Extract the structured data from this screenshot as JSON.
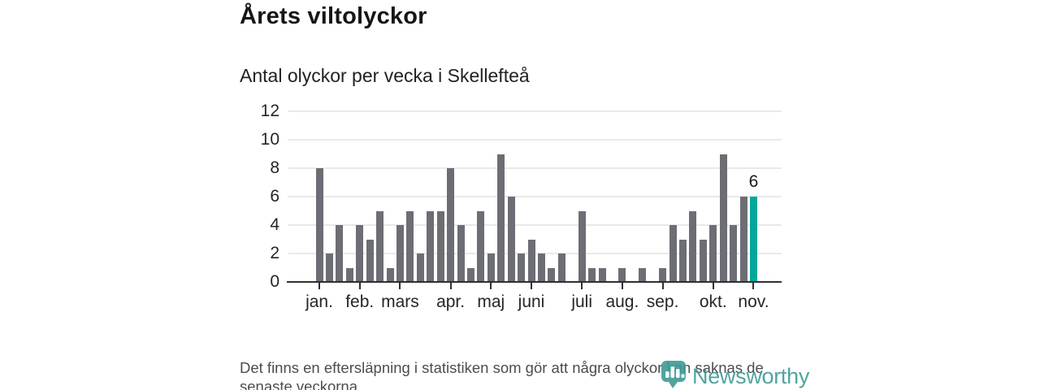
{
  "header": {
    "title": "Årets viltolyckor",
    "subtitle": "Antal olyckor per vecka i Skellefteå"
  },
  "chart_data": {
    "type": "bar",
    "title": "Årets viltolyckor",
    "subtitle": "Antal olyckor per vecka i Skellefteå",
    "values": [
      8,
      2,
      4,
      1,
      4,
      3,
      5,
      1,
      4,
      5,
      2,
      5,
      5,
      8,
      4,
      1,
      5,
      2,
      9,
      6,
      2,
      3,
      2,
      1,
      2,
      0,
      5,
      1,
      1,
      0,
      1,
      0,
      1,
      0,
      1,
      4,
      3,
      5,
      3,
      4,
      9,
      4,
      6,
      6
    ],
    "ylim": [
      0,
      12
    ],
    "y_ticks": [
      0,
      2,
      4,
      6,
      8,
      10,
      12
    ],
    "grid": true,
    "legend": "none",
    "month_ticks": [
      {
        "label": "jan.",
        "week_index": 1
      },
      {
        "label": "feb.",
        "week_index": 5
      },
      {
        "label": "mars",
        "week_index": 9
      },
      {
        "label": "apr.",
        "week_index": 14
      },
      {
        "label": "maj",
        "week_index": 18
      },
      {
        "label": "juni",
        "week_index": 22
      },
      {
        "label": "juli",
        "week_index": 27
      },
      {
        "label": "aug.",
        "week_index": 31
      },
      {
        "label": "sep.",
        "week_index": 35
      },
      {
        "label": "okt.",
        "week_index": 40
      },
      {
        "label": "nov.",
        "week_index": 44
      }
    ],
    "highlight": {
      "index": 43,
      "label": "6",
      "color": "#00a79b"
    },
    "colors": {
      "bar": "#6d6d75",
      "grid": "#e9e9e9",
      "axis": "#2f2f2f"
    }
  },
  "footer": {
    "lines": [
      "Det finns en eftersläpning i statistiken som gör att några olyckor kan saknas de",
      "senaste veckorna."
    ]
  },
  "logo": {
    "text": "Newsworthy",
    "color": "#3e9b96"
  }
}
